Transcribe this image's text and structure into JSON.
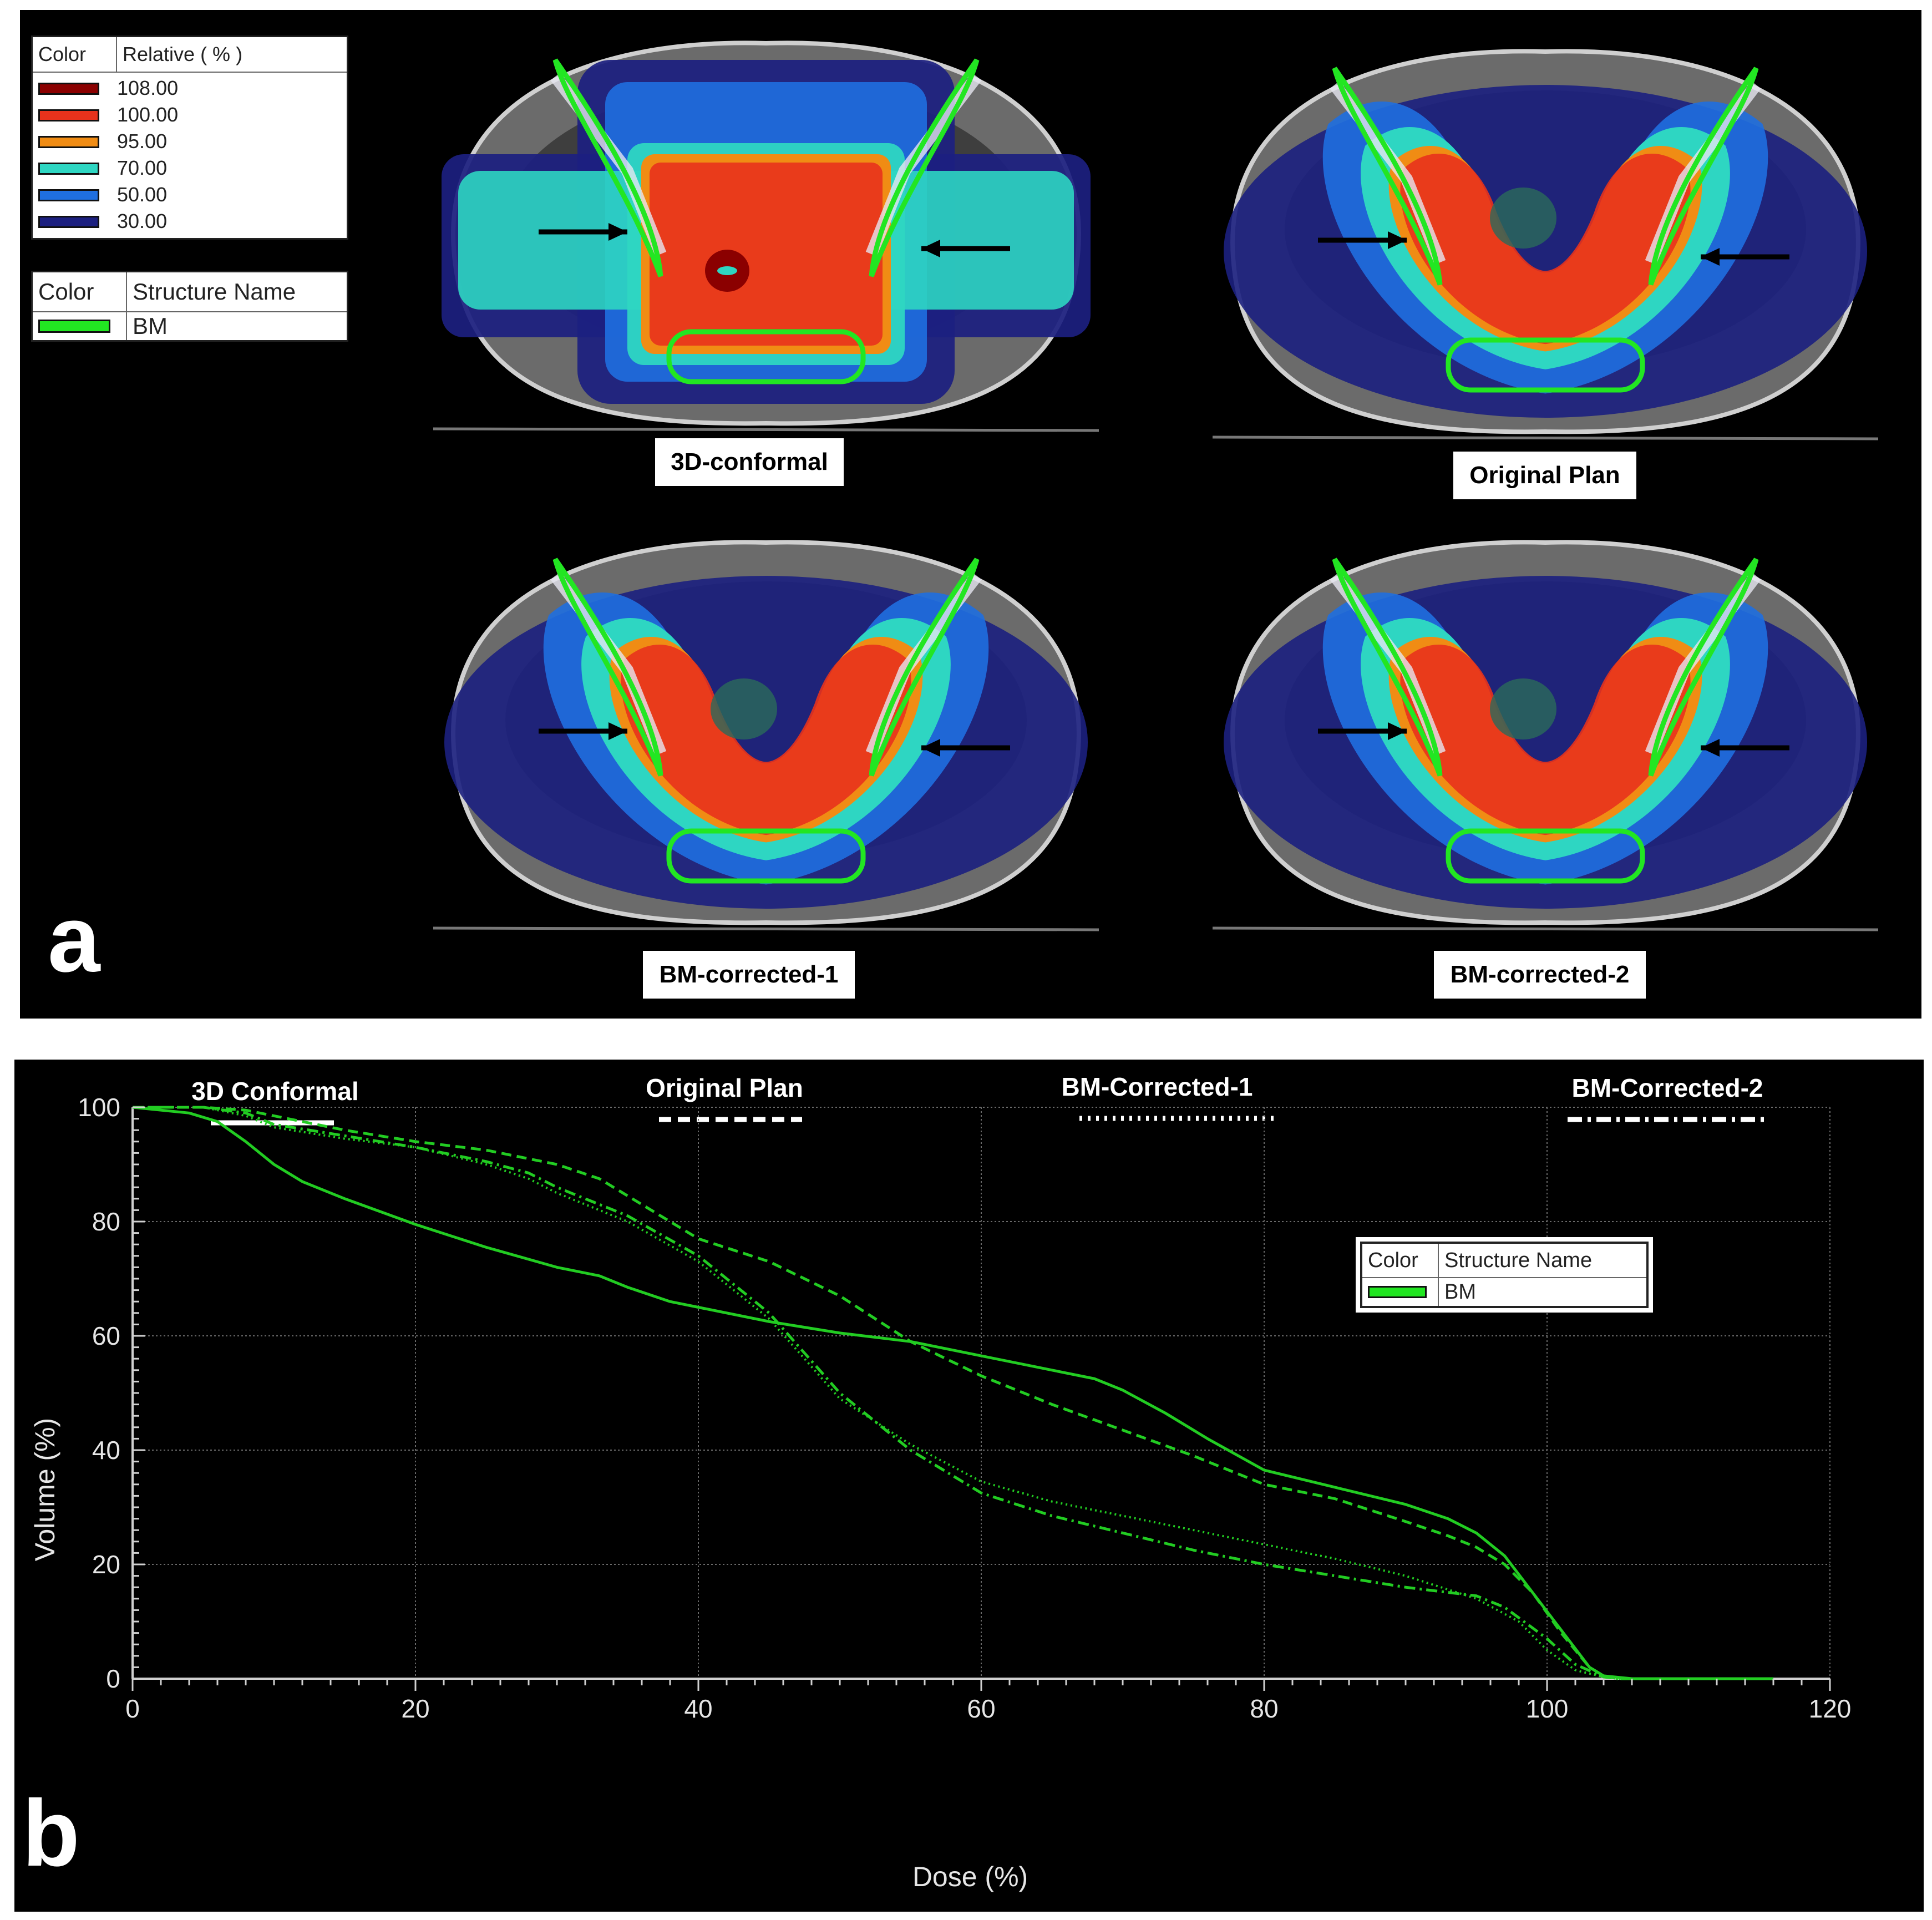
{
  "figure": {
    "panel_a_letter": "a",
    "panel_b_letter": "b"
  },
  "dose_legend": {
    "header_color": "Color",
    "header_relative": "Relative ( % )",
    "levels": [
      {
        "value": "108.00",
        "color": "#8b0000"
      },
      {
        "value": "100.00",
        "color": "#e8321c"
      },
      {
        "value": "95.00",
        "color": "#f08c14"
      },
      {
        "value": "70.00",
        "color": "#2ed6c2"
      },
      {
        "value": "50.00",
        "color": "#1f6fe0"
      },
      {
        "value": "30.00",
        "color": "#1c2080"
      }
    ]
  },
  "structure_legend": {
    "header_color": "Color",
    "header_name": "Structure Name",
    "entries": [
      {
        "name": "BM",
        "color": "#22e622"
      }
    ]
  },
  "ct_images": [
    {
      "caption": "3D-conformal",
      "style": "box"
    },
    {
      "caption": "Original Plan",
      "style": "imrt"
    },
    {
      "caption": "BM-corrected-1",
      "style": "imrt"
    },
    {
      "caption": "BM-corrected-2",
      "style": "imrt"
    }
  ],
  "line_key": [
    {
      "label": "3D Conformal",
      "dash": "solid"
    },
    {
      "label": "Original Plan",
      "dash": "dashed"
    },
    {
      "label": "BM-Corrected-1",
      "dash": "dotted"
    },
    {
      "label": "BM-Corrected-2",
      "dash": "dashdot"
    }
  ],
  "chart_data": {
    "type": "line",
    "xlabel": "Dose (%)",
    "ylabel": "Volume (%)",
    "xlim": [
      0,
      120
    ],
    "ylim": [
      0,
      100
    ],
    "xticks": [
      0,
      20,
      40,
      60,
      80,
      100,
      120
    ],
    "yticks": [
      0,
      20,
      40,
      60,
      80,
      100
    ],
    "grid": true,
    "line_color": "#22cc22",
    "legend": {
      "header_color": "Color",
      "header_name": "Structure Name",
      "entry": "BM",
      "placement": "top-right"
    },
    "series": [
      {
        "name": "3D Conformal",
        "dash": "solid",
        "x": [
          0,
          4,
          6,
          8,
          10,
          12,
          15,
          20,
          25,
          30,
          33,
          35,
          38,
          40,
          45,
          50,
          55,
          60,
          65,
          68,
          70,
          73,
          76,
          80,
          85,
          90,
          93,
          95,
          97,
          99,
          101,
          103,
          104,
          106,
          110,
          116
        ],
        "y": [
          100,
          99,
          97.5,
          94,
          90,
          87,
          84,
          79.5,
          75.5,
          72,
          70.5,
          68.5,
          66,
          65,
          62.5,
          60.5,
          59,
          56.5,
          54,
          52.5,
          50.5,
          46.5,
          42,
          36.5,
          33.5,
          30.5,
          28,
          25.5,
          21.5,
          15,
          8.5,
          2,
          0.5,
          0,
          0,
          0
        ]
      },
      {
        "name": "Original Plan",
        "dash": "dashed",
        "x": [
          0,
          5,
          8,
          10,
          15,
          20,
          25,
          30,
          33,
          35,
          38,
          40,
          45,
          50,
          55,
          60,
          65,
          70,
          75,
          80,
          85,
          90,
          93,
          95,
          97,
          99,
          101,
          103,
          104,
          105,
          110,
          116
        ],
        "y": [
          100,
          100,
          99.5,
          98.5,
          96,
          94,
          92.5,
          90,
          87.5,
          84.5,
          80,
          77,
          73,
          67,
          59,
          53,
          48,
          43.5,
          39,
          34,
          31.5,
          27.5,
          25,
          23,
          20,
          15,
          8,
          2,
          0.5,
          0,
          0,
          0
        ]
      },
      {
        "name": "BM-Corrected-1",
        "dash": "dotted",
        "x": [
          0,
          5,
          8,
          10,
          15,
          20,
          25,
          28,
          30,
          35,
          40,
          45,
          50,
          55,
          60,
          65,
          70,
          75,
          80,
          85,
          90,
          95,
          98,
          100,
          102,
          104,
          105,
          110,
          116
        ],
        "y": [
          100,
          100,
          98.5,
          96.5,
          94.5,
          93,
          90,
          87.5,
          85,
          80,
          73,
          63,
          49,
          41,
          34.5,
          31,
          28.5,
          26,
          23.5,
          21,
          18,
          14,
          10,
          5,
          1.5,
          0.3,
          0,
          0,
          0
        ]
      },
      {
        "name": "BM-Corrected-2",
        "dash": "dashdot",
        "x": [
          0,
          5,
          8,
          10,
          15,
          20,
          25,
          28,
          30,
          35,
          40,
          45,
          50,
          55,
          60,
          65,
          70,
          75,
          80,
          85,
          90,
          95,
          97,
          100,
          102,
          104,
          105,
          110,
          116
        ],
        "y": [
          100,
          100,
          99,
          97,
          95,
          93,
          90.5,
          88.5,
          86,
          81,
          74,
          64,
          50,
          40,
          32.5,
          28.5,
          25.5,
          22.5,
          20,
          18,
          16,
          14.5,
          12.5,
          7,
          2.5,
          0.3,
          0,
          0,
          0
        ]
      }
    ]
  }
}
